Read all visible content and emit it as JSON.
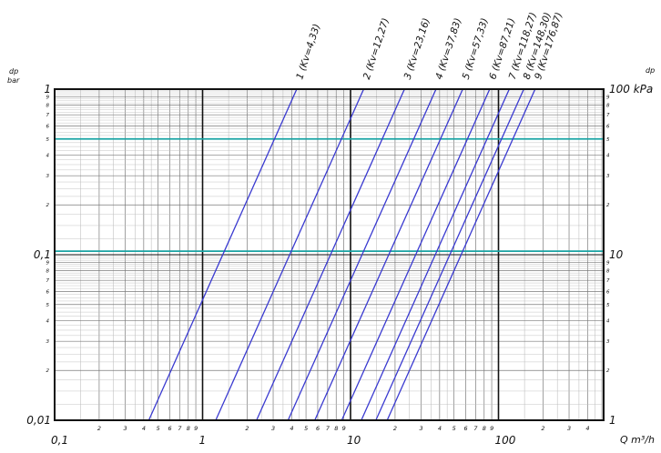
{
  "chart_data": {
    "type": "line",
    "x_scale": "log",
    "y_scale": "log",
    "xlim": [
      0.1,
      500
    ],
    "ylim": [
      0.01,
      1
    ],
    "x_major_ticks": [
      {
        "value": 0.1,
        "label": "0,1"
      },
      {
        "value": 1,
        "label": "1"
      },
      {
        "value": 10,
        "label": "10"
      },
      {
        "value": 100,
        "label": "100"
      }
    ],
    "x_minor_digits": [
      "2",
      "3",
      "4",
      "5",
      "6",
      "7",
      "8",
      "9"
    ],
    "y_left_ticks": [
      {
        "value": 1,
        "label": "1"
      },
      {
        "value": 0.1,
        "label": "0,1"
      },
      {
        "value": 0.01,
        "label": "0,01"
      }
    ],
    "y_right_ticks": [
      {
        "value": 1,
        "label": "100 kPa"
      },
      {
        "value": 0.1,
        "label": "10"
      },
      {
        "value": 0.01,
        "label": "1"
      }
    ],
    "y_minor_digits": [
      "2",
      "3",
      "4",
      "5",
      "6",
      "7",
      "8",
      "9"
    ],
    "ylabel_left": {
      "top": "dp",
      "bottom": "bar"
    },
    "ylabel_right": "dp",
    "xlabel": "Q m³/h",
    "reference_lines": [
      {
        "y": 0.5,
        "color": "#19a3a3"
      },
      {
        "y": 0.105,
        "color": "#19a3a3"
      }
    ],
    "series_color": "#3a3ad0",
    "series": [
      {
        "name": "1 (Kv=4,33)",
        "kv": 4.33
      },
      {
        "name": "2 (Kv=12,27)",
        "kv": 12.27
      },
      {
        "name": "3 (Kv=23,16)",
        "kv": 23.16
      },
      {
        "name": "4 (Kv=37,83)",
        "kv": 37.83
      },
      {
        "name": "5 (Kv=57,33)",
        "kv": 57.33
      },
      {
        "name": "6 (Kv=87,21)",
        "kv": 87.21
      },
      {
        "name": "7 (Kv=118,27)",
        "kv": 118.27
      },
      {
        "name": "8 (Kv=148,30)",
        "kv": 148.3
      },
      {
        "name": "9 (Kv=176,87)",
        "kv": 176.87
      }
    ],
    "grid": true
  }
}
